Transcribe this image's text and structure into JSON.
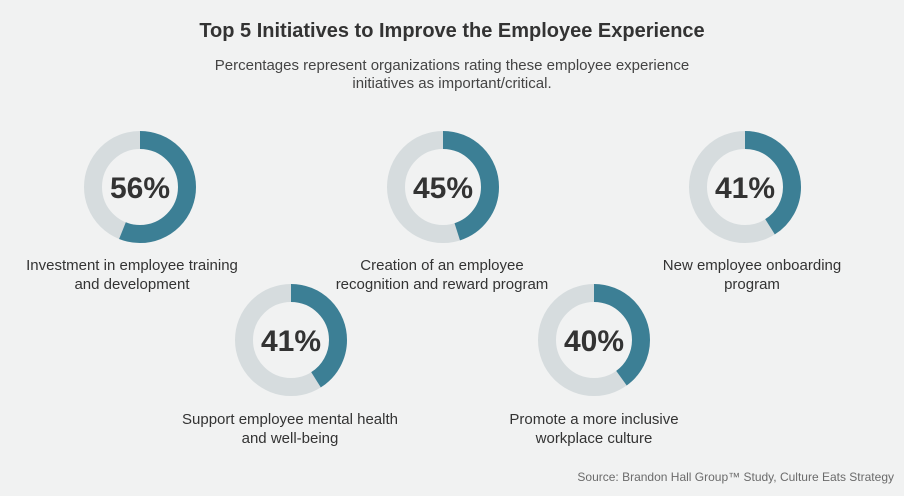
{
  "chart_data": {
    "type": "donut",
    "title": "Top 5 Initiatives to Improve the Employee Experience",
    "subtitle": "Percentages represent organizations rating these employee experience initiatives as important/critical.",
    "items": [
      {
        "label": "Investment in employee training and development",
        "value": 56,
        "display": "56%"
      },
      {
        "label": "Support employee mental health and well-being",
        "value": 41,
        "display": "41%"
      },
      {
        "label": "Creation of an employee recognition and reward program",
        "value": 45,
        "display": "45%"
      },
      {
        "label": "Promote a more inclusive workplace culture",
        "value": 40,
        "display": "40%"
      },
      {
        "label": "New employee onboarding program",
        "value": 41,
        "display": "41%"
      }
    ],
    "source": "Source: Brandon Hall Group™ Study, Culture Eats Strategy",
    "colors": {
      "filled": "#3c7f95",
      "track": "#d6dcde"
    }
  }
}
